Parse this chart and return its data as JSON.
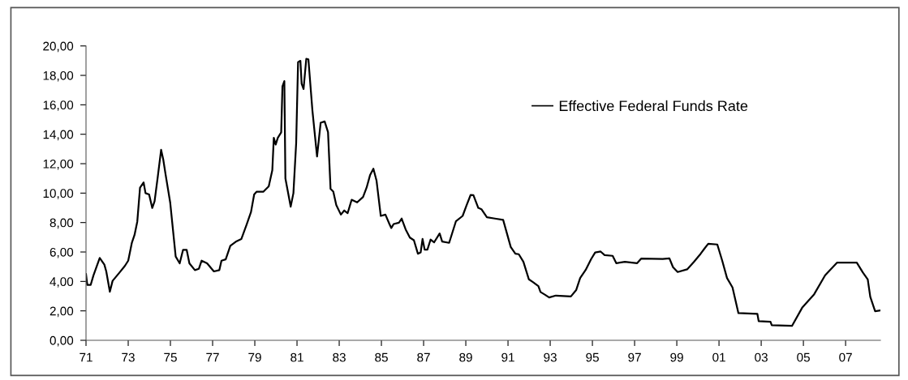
{
  "chart_data": {
    "type": "line",
    "legend": "top right",
    "grid": false,
    "marker": "none",
    "line_style": "solid",
    "xlim": [
      1971,
      2008.65
    ],
    "xticks": [
      {
        "value": 1971,
        "label": "71"
      },
      {
        "value": 1973,
        "label": "73"
      },
      {
        "value": 1975,
        "label": "75"
      },
      {
        "value": 1977,
        "label": "77"
      },
      {
        "value": 1979,
        "label": "79"
      },
      {
        "value": 1981,
        "label": "81"
      },
      {
        "value": 1983,
        "label": "83"
      },
      {
        "value": 1985,
        "label": "85"
      },
      {
        "value": 1987,
        "label": "87"
      },
      {
        "value": 1989,
        "label": "89"
      },
      {
        "value": 1991,
        "label": "91"
      },
      {
        "value": 1993,
        "label": "93"
      },
      {
        "value": 1995,
        "label": "95"
      },
      {
        "value": 1997,
        "label": "97"
      },
      {
        "value": 1999,
        "label": "99"
      },
      {
        "value": 2001,
        "label": "01"
      },
      {
        "value": 2003,
        "label": "03"
      },
      {
        "value": 2005,
        "label": "05"
      },
      {
        "value": 2007,
        "label": "07"
      }
    ],
    "ylim": [
      0,
      20
    ],
    "yticks": [
      {
        "value": 0,
        "label": "0,00"
      },
      {
        "value": 2,
        "label": "2,00"
      },
      {
        "value": 4,
        "label": "4,00"
      },
      {
        "value": 6,
        "label": "6,00"
      },
      {
        "value": 8,
        "label": "8,00"
      },
      {
        "value": 10,
        "label": "10,00"
      },
      {
        "value": 12,
        "label": "12,00"
      },
      {
        "value": 14,
        "label": "14,00"
      },
      {
        "value": 16,
        "label": "16,00"
      },
      {
        "value": 18,
        "label": "18,00"
      },
      {
        "value": 20,
        "label": "20,00"
      }
    ],
    "series": [
      {
        "name": "Effective Federal Funds Rate",
        "color": "#000000",
        "x": [
          1971.0,
          1971.06,
          1971.22,
          1971.35,
          1971.65,
          1971.87,
          1971.96,
          1972.13,
          1972.26,
          1972.58,
          1972.84,
          1973.0,
          1973.17,
          1973.3,
          1973.43,
          1973.56,
          1973.73,
          1973.82,
          1973.99,
          1974.14,
          1974.25,
          1974.4,
          1974.56,
          1974.66,
          1974.77,
          1974.99,
          1975.25,
          1975.44,
          1975.6,
          1975.77,
          1975.9,
          1976.16,
          1976.35,
          1976.48,
          1976.74,
          1977.06,
          1977.32,
          1977.42,
          1977.62,
          1977.84,
          1978.1,
          1978.36,
          1978.62,
          1978.82,
          1978.97,
          1979.08,
          1979.4,
          1979.66,
          1979.83,
          1979.9,
          1979.99,
          1980.09,
          1980.25,
          1980.31,
          1980.4,
          1980.45,
          1980.7,
          1980.83,
          1980.96,
          1981.05,
          1981.16,
          1981.22,
          1981.31,
          1981.44,
          1981.54,
          1981.73,
          1981.95,
          1982.12,
          1982.31,
          1982.47,
          1982.59,
          1982.72,
          1982.86,
          1983.08,
          1983.24,
          1983.4,
          1983.59,
          1983.85,
          1984.13,
          1984.3,
          1984.46,
          1984.62,
          1984.77,
          1984.97,
          1985.19,
          1985.38,
          1985.47,
          1985.58,
          1985.83,
          1985.96,
          1986.15,
          1986.35,
          1986.54,
          1986.73,
          1986.86,
          1986.95,
          1987.05,
          1987.18,
          1987.33,
          1987.5,
          1987.76,
          1987.88,
          1988.21,
          1988.53,
          1988.85,
          1989.04,
          1989.23,
          1989.36,
          1989.59,
          1989.74,
          1990.0,
          1990.38,
          1990.77,
          1991.13,
          1991.35,
          1991.51,
          1991.73,
          1991.99,
          1992.18,
          1992.44,
          1992.54,
          1992.76,
          1992.95,
          1993.27,
          1993.98,
          1994.23,
          1994.42,
          1994.68,
          1994.94,
          1995.13,
          1995.39,
          1995.58,
          1995.96,
          1996.13,
          1996.54,
          1997.12,
          1997.31,
          1998.33,
          1998.65,
          1998.82,
          1999.04,
          1999.49,
          1999.81,
          2000.13,
          2000.32,
          2000.49,
          2000.92,
          2001.15,
          2001.38,
          2001.64,
          2001.92,
          2002.82,
          2002.88,
          2003.44,
          2003.5,
          2004.46,
          2004.94,
          2005.51,
          2006.03,
          2006.6,
          2007.53,
          2007.82,
          2008.05,
          2008.17,
          2008.4,
          2008.65
        ],
        "values": [
          4.5,
          3.76,
          3.76,
          4.4,
          5.6,
          5.14,
          4.68,
          3.3,
          4.04,
          4.59,
          5.05,
          5.41,
          6.61,
          7.16,
          8.07,
          10.37,
          10.73,
          10.0,
          9.91,
          8.99,
          9.45,
          11.1,
          12.94,
          12.29,
          11.28,
          9.36,
          5.69,
          5.23,
          6.15,
          6.15,
          5.23,
          4.77,
          4.86,
          5.41,
          5.23,
          4.68,
          4.77,
          5.41,
          5.5,
          6.42,
          6.7,
          6.88,
          7.89,
          8.72,
          9.91,
          10.09,
          10.09,
          10.46,
          11.56,
          13.76,
          13.3,
          13.76,
          14.13,
          17.25,
          17.61,
          11.0,
          9.08,
          10.0,
          13.39,
          18.9,
          18.99,
          17.43,
          17.07,
          19.13,
          19.09,
          15.61,
          12.49,
          14.78,
          14.87,
          14.14,
          10.29,
          10.1,
          9.19,
          8.54,
          8.82,
          8.64,
          9.55,
          9.37,
          9.74,
          10.38,
          11.21,
          11.66,
          10.84,
          8.45,
          8.54,
          7.9,
          7.63,
          7.9,
          7.99,
          8.27,
          7.53,
          6.98,
          6.8,
          5.88,
          5.97,
          6.89,
          6.16,
          6.16,
          6.84,
          6.66,
          7.26,
          6.71,
          6.62,
          8.08,
          8.45,
          9.19,
          9.88,
          9.86,
          9.0,
          8.91,
          8.36,
          8.27,
          8.18,
          6.34,
          5.88,
          5.85,
          5.33,
          4.14,
          3.96,
          3.68,
          3.28,
          3.09,
          2.91,
          3.04,
          2.98,
          3.41,
          4.23,
          4.78,
          5.52,
          5.97,
          6.03,
          5.79,
          5.74,
          5.24,
          5.33,
          5.24,
          5.55,
          5.52,
          5.57,
          4.97,
          4.64,
          4.82,
          5.33,
          5.88,
          6.25,
          6.56,
          6.51,
          5.42,
          4.23,
          3.59,
          1.85,
          1.79,
          1.3,
          1.26,
          1.02,
          0.98,
          2.21,
          3.13,
          4.42,
          5.28,
          5.28,
          4.6,
          4.14,
          2.95,
          1.97,
          2.03
        ]
      }
    ]
  }
}
